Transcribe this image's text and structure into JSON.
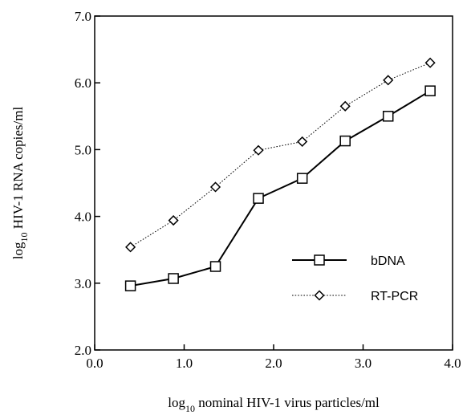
{
  "chart_data": {
    "type": "line",
    "title": "",
    "xlabel": {
      "pre": "log",
      "sub": "10",
      "post": " nominal HIV-1 virus particles/ml"
    },
    "ylabel": {
      "pre": "log",
      "sub": "10",
      "post": " HIV-1 RNA copies/ml"
    },
    "xlim": [
      0.0,
      4.0
    ],
    "ylim": [
      2.0,
      7.0
    ],
    "x_ticks": [
      "0.0",
      "1.0",
      "2.0",
      "3.0",
      "4.0"
    ],
    "y_ticks": [
      "2.0",
      "3.0",
      "4.0",
      "5.0",
      "6.0",
      "7.0"
    ],
    "grid": false,
    "legend_position": "lower-right",
    "series": [
      {
        "name": "bDNA",
        "line_style": "solid",
        "marker": "square",
        "x": [
          0.4,
          0.88,
          1.35,
          1.83,
          2.32,
          2.8,
          3.28,
          3.75
        ],
        "y": [
          2.96,
          3.07,
          3.25,
          4.27,
          4.57,
          5.13,
          5.5,
          5.88
        ]
      },
      {
        "name": "RT-PCR",
        "line_style": "dotted",
        "marker": "diamond",
        "x": [
          0.4,
          0.88,
          1.35,
          1.83,
          2.32,
          2.8,
          3.28,
          3.75
        ],
        "y": [
          3.54,
          3.94,
          4.44,
          4.99,
          5.12,
          5.65,
          6.04,
          6.3
        ]
      }
    ]
  }
}
